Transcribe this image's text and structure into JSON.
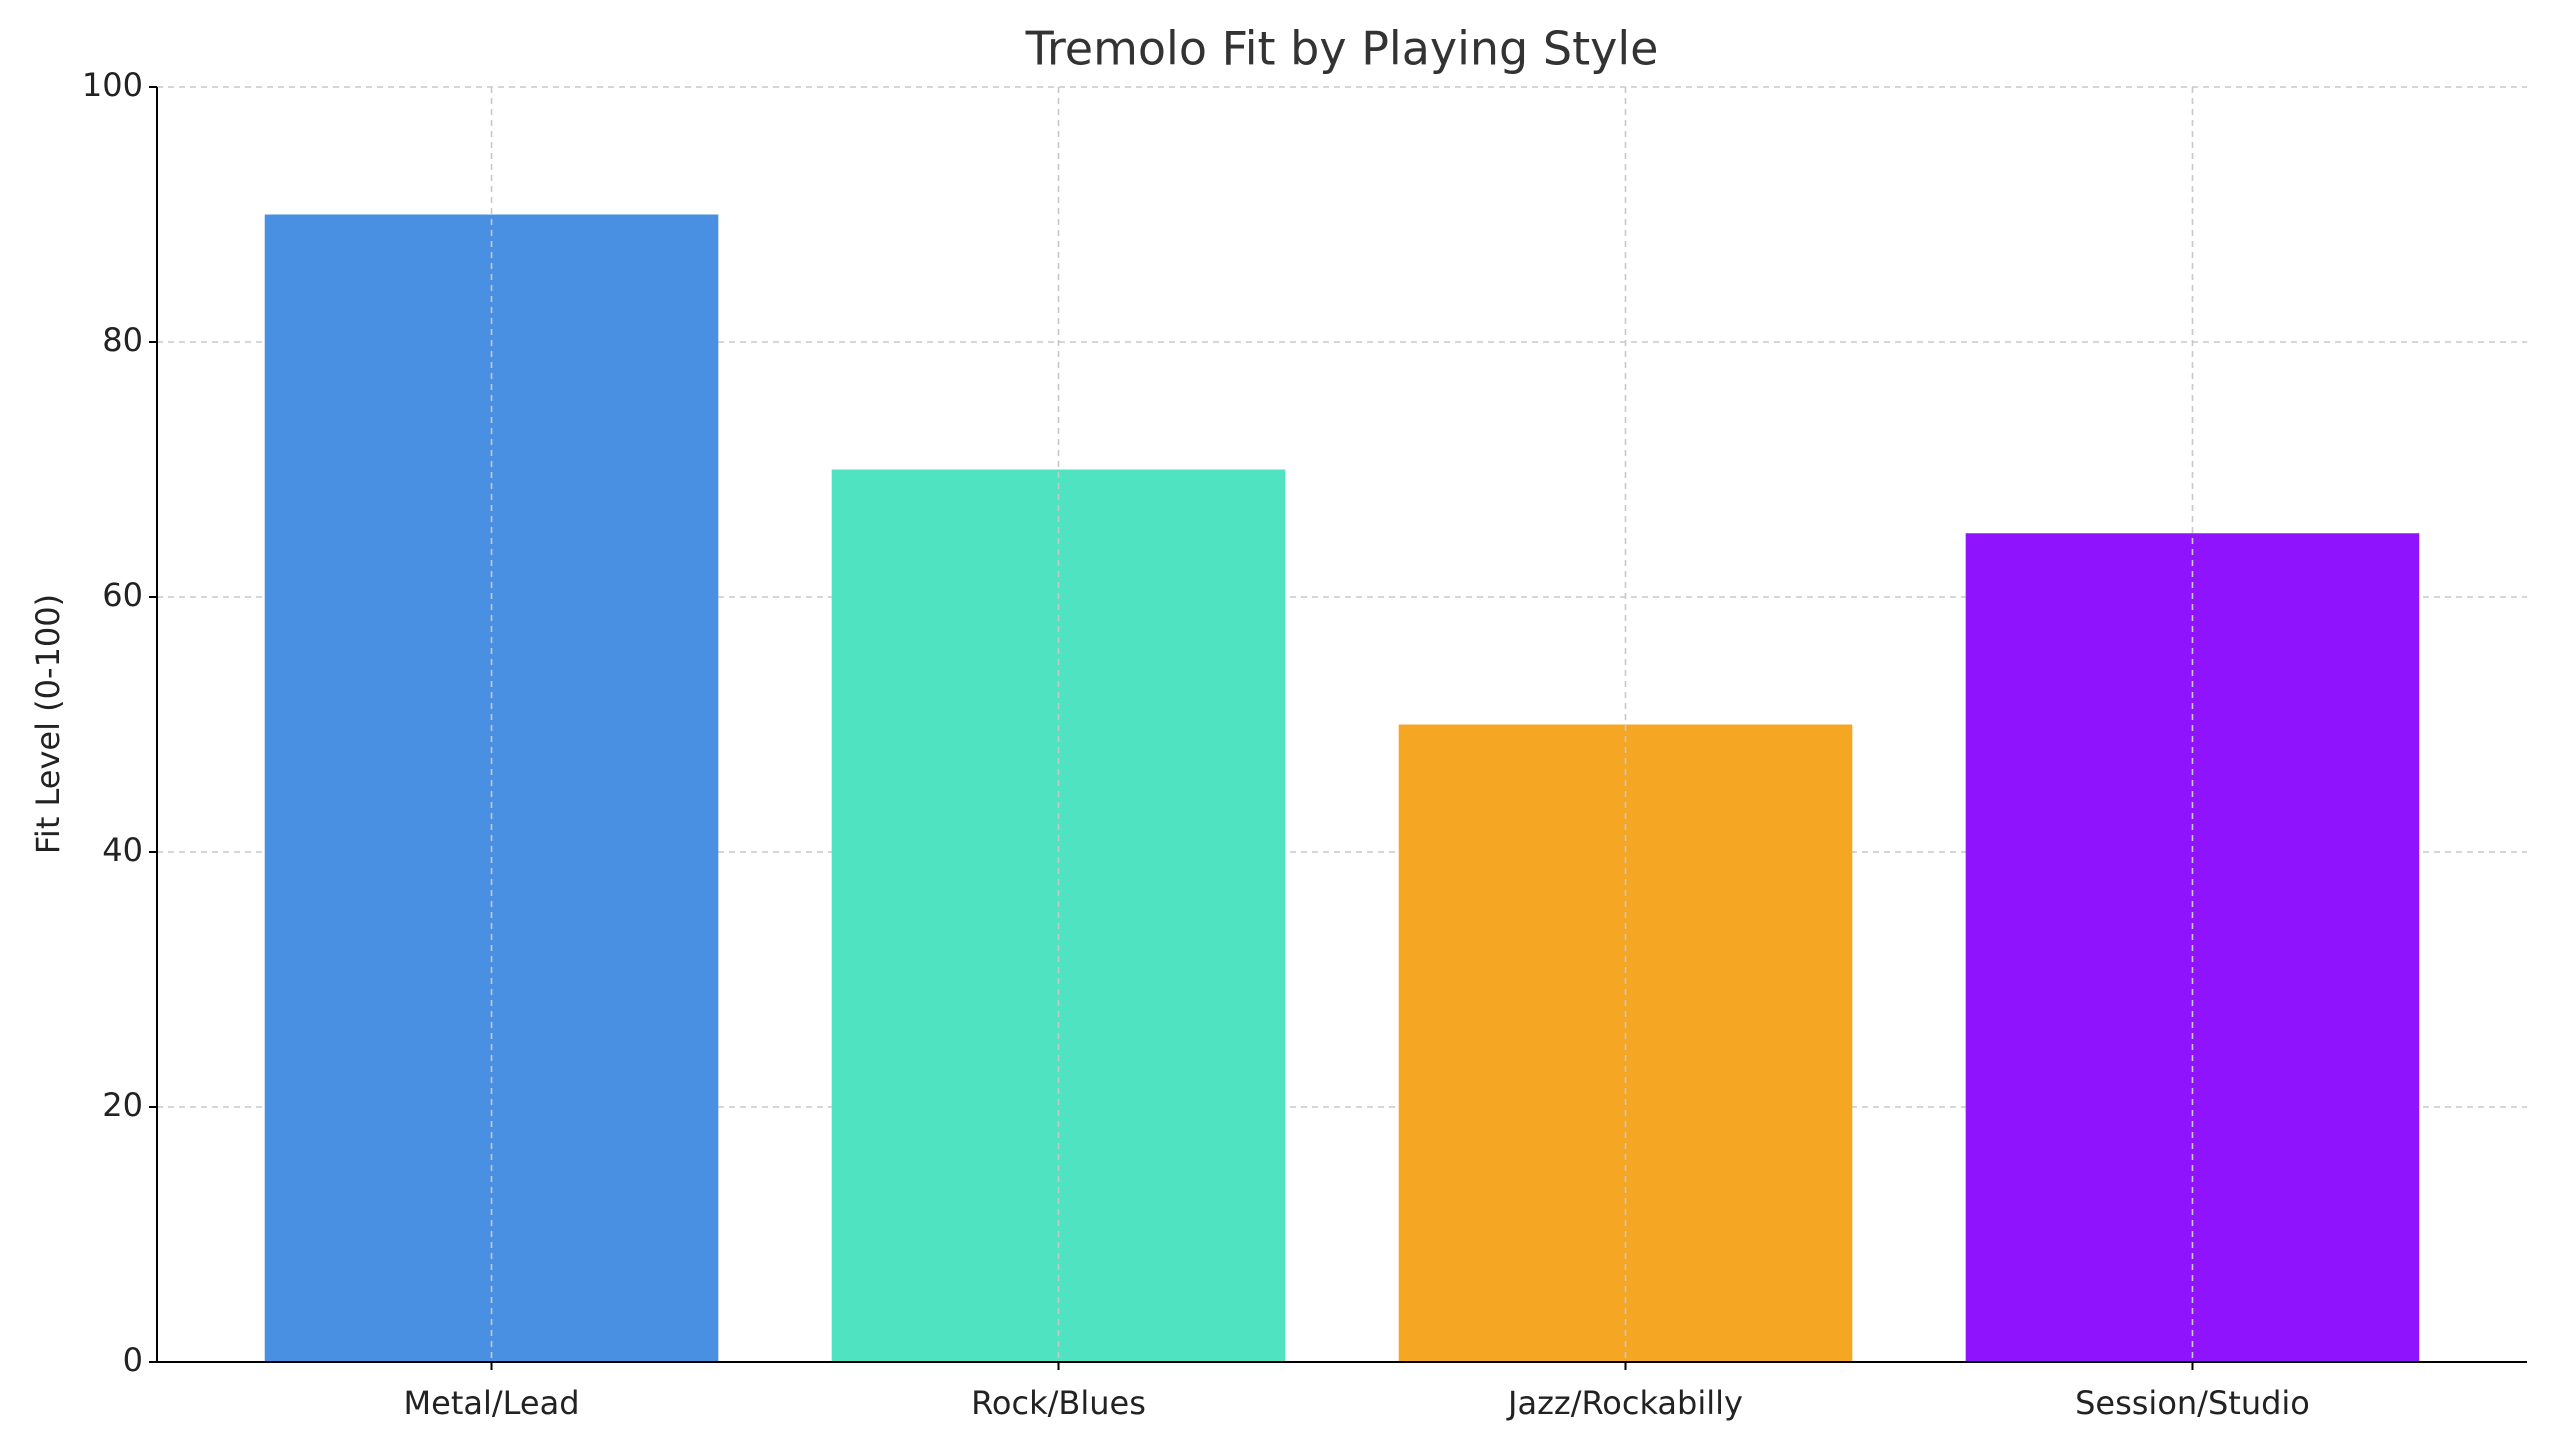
{
  "chart_data": {
    "type": "bar",
    "title": "Tremolo Fit by Playing Style",
    "y_label": "Fit Level (0-100)",
    "categories": [
      "Metal/Lead",
      "Rock/Blues",
      "Jazz/Rockabilly",
      "Session/Studio"
    ],
    "values": [
      90,
      70,
      50,
      65
    ],
    "colors": [
      "#4a90e2",
      "#50e3c2",
      "#f5a623",
      "#9013fe"
    ],
    "ylim": [
      0,
      100
    ],
    "yticks": [
      0,
      20,
      40,
      60,
      80,
      100
    ],
    "grid": true
  }
}
